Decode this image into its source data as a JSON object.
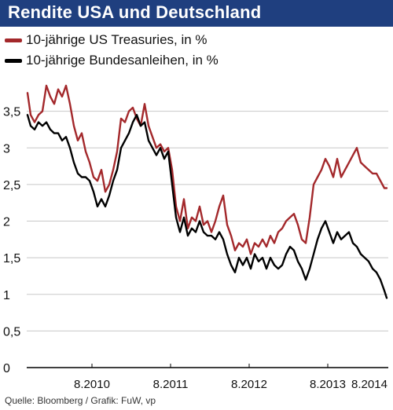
{
  "title": "Rendite USA und Deutschland",
  "source": "Quelle: Bloomberg / Grafik: FuW, vp",
  "chart_data": {
    "type": "line",
    "x_unit": "year (decimal)",
    "xlim": [
      2009.75,
      2014.35
    ],
    "ylim": [
      0,
      4.0
    ],
    "y_ticks": [
      0,
      0.5,
      1,
      1.5,
      2,
      2.5,
      3,
      3.5
    ],
    "y_tick_labels": [
      "0",
      "0,5",
      "1",
      "1,5",
      "2",
      "2,5",
      "3",
      "3,5"
    ],
    "x_ticks": [
      2010.58,
      2011.58,
      2012.58,
      2013.58,
      2014.58
    ],
    "x_tick_labels": [
      "8.2010",
      "8.2011",
      "8.2012",
      "8.2013",
      "8.2014"
    ],
    "grid": "y-major",
    "legend_position": "top-left",
    "series": [
      {
        "name": "10-jährige US Treasuries, in %",
        "color": "#a3282b",
        "x": [
          2009.76,
          2009.8,
          2009.85,
          2009.9,
          2009.95,
          2010.0,
          2010.05,
          2010.1,
          2010.15,
          2010.2,
          2010.25,
          2010.3,
          2010.35,
          2010.4,
          2010.45,
          2010.5,
          2010.55,
          2010.6,
          2010.65,
          2010.7,
          2010.75,
          2010.8,
          2010.85,
          2010.9,
          2010.95,
          2011.0,
          2011.05,
          2011.1,
          2011.15,
          2011.2,
          2011.25,
          2011.3,
          2011.35,
          2011.4,
          2011.45,
          2011.5,
          2011.55,
          2011.6,
          2011.65,
          2011.7,
          2011.75,
          2011.8,
          2011.85,
          2011.9,
          2011.95,
          2012.0,
          2012.05,
          2012.1,
          2012.15,
          2012.2,
          2012.25,
          2012.3,
          2012.35,
          2012.4,
          2012.45,
          2012.5,
          2012.55,
          2012.6,
          2012.65,
          2012.7,
          2012.75,
          2012.8,
          2012.85,
          2012.9,
          2012.95,
          2013.0,
          2013.05,
          2013.1,
          2013.15,
          2013.2,
          2013.25,
          2013.3,
          2013.35,
          2013.4,
          2013.45,
          2013.5,
          2013.55,
          2013.6,
          2013.65,
          2013.7,
          2013.75,
          2013.8,
          2013.85,
          2013.9,
          2013.95,
          2014.0,
          2014.05,
          2014.1,
          2014.15,
          2014.2,
          2014.25,
          2014.3,
          2014.33
        ],
        "values": [
          3.75,
          3.45,
          3.35,
          3.45,
          3.5,
          3.85,
          3.7,
          3.6,
          3.8,
          3.7,
          3.85,
          3.6,
          3.3,
          3.1,
          3.2,
          2.95,
          2.8,
          2.6,
          2.55,
          2.7,
          2.4,
          2.5,
          2.7,
          2.95,
          3.4,
          3.35,
          3.5,
          3.55,
          3.4,
          3.3,
          3.6,
          3.3,
          3.15,
          3.0,
          3.05,
          2.95,
          3.0,
          2.7,
          2.2,
          2.0,
          2.3,
          1.9,
          2.05,
          2.0,
          2.2,
          1.95,
          2.0,
          1.85,
          2.0,
          2.2,
          2.35,
          1.95,
          1.8,
          1.6,
          1.7,
          1.65,
          1.75,
          1.55,
          1.7,
          1.65,
          1.75,
          1.65,
          1.8,
          1.7,
          1.85,
          1.9,
          2.0,
          2.05,
          2.1,
          1.95,
          1.75,
          1.7,
          2.05,
          2.5,
          2.6,
          2.7,
          2.85,
          2.75,
          2.6,
          2.85,
          2.6,
          2.7,
          2.8,
          2.9,
          3.0,
          2.8,
          2.75,
          2.7,
          2.65,
          2.65,
          2.55,
          2.45,
          2.45
        ]
      },
      {
        "name": "10-jährige Bundesanleihen, in %",
        "color": "#000000",
        "x": [
          2009.76,
          2009.8,
          2009.85,
          2009.9,
          2009.95,
          2010.0,
          2010.05,
          2010.1,
          2010.15,
          2010.2,
          2010.25,
          2010.3,
          2010.35,
          2010.4,
          2010.45,
          2010.5,
          2010.55,
          2010.6,
          2010.65,
          2010.7,
          2010.75,
          2010.8,
          2010.85,
          2010.9,
          2010.95,
          2011.0,
          2011.05,
          2011.1,
          2011.15,
          2011.2,
          2011.25,
          2011.3,
          2011.35,
          2011.4,
          2011.45,
          2011.5,
          2011.55,
          2011.6,
          2011.65,
          2011.7,
          2011.75,
          2011.8,
          2011.85,
          2011.9,
          2011.95,
          2012.0,
          2012.05,
          2012.1,
          2012.15,
          2012.2,
          2012.25,
          2012.3,
          2012.35,
          2012.4,
          2012.45,
          2012.5,
          2012.55,
          2012.6,
          2012.65,
          2012.7,
          2012.75,
          2012.8,
          2012.85,
          2012.9,
          2012.95,
          2013.0,
          2013.05,
          2013.1,
          2013.15,
          2013.2,
          2013.25,
          2013.3,
          2013.35,
          2013.4,
          2013.45,
          2013.5,
          2013.55,
          2013.6,
          2013.65,
          2013.7,
          2013.75,
          2013.8,
          2013.85,
          2013.9,
          2013.95,
          2014.0,
          2014.05,
          2014.1,
          2014.15,
          2014.2,
          2014.25,
          2014.3,
          2014.33
        ],
        "values": [
          3.45,
          3.3,
          3.25,
          3.35,
          3.3,
          3.35,
          3.25,
          3.2,
          3.2,
          3.1,
          3.15,
          3.0,
          2.8,
          2.65,
          2.6,
          2.6,
          2.55,
          2.4,
          2.2,
          2.3,
          2.2,
          2.35,
          2.55,
          2.7,
          3.0,
          3.1,
          3.2,
          3.35,
          3.45,
          3.3,
          3.35,
          3.1,
          3.0,
          2.9,
          3.0,
          2.85,
          2.95,
          2.5,
          2.05,
          1.85,
          2.05,
          1.8,
          1.9,
          1.85,
          2.0,
          1.85,
          1.8,
          1.8,
          1.75,
          1.85,
          1.75,
          1.55,
          1.4,
          1.3,
          1.5,
          1.4,
          1.5,
          1.35,
          1.55,
          1.45,
          1.5,
          1.35,
          1.5,
          1.4,
          1.35,
          1.4,
          1.55,
          1.65,
          1.6,
          1.45,
          1.35,
          1.2,
          1.35,
          1.55,
          1.75,
          1.9,
          2.0,
          1.85,
          1.7,
          1.85,
          1.75,
          1.8,
          1.85,
          1.7,
          1.65,
          1.55,
          1.5,
          1.45,
          1.35,
          1.3,
          1.2,
          1.05,
          0.95
        ]
      }
    ]
  }
}
